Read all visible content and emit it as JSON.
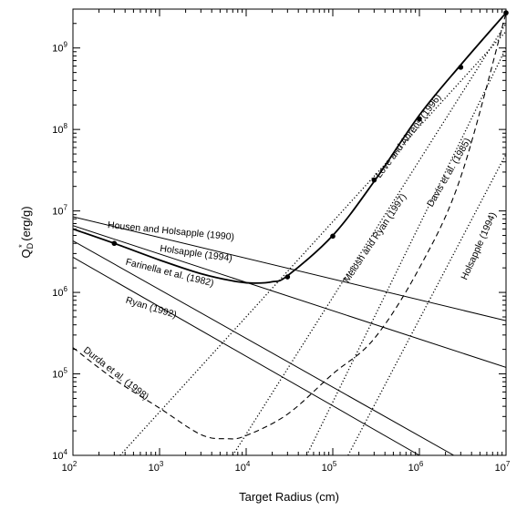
{
  "chart_data": {
    "type": "line",
    "xlabel": "Target Radius (cm)",
    "ylabel_main": "Q",
    "ylabel_sup": "*",
    "ylabel_sub": "D",
    "ylabel_unit": " (erg/g)",
    "x_scale": "log",
    "y_scale": "log",
    "xlim": [
      100,
      10000000
    ],
    "ylim": [
      10000,
      3000000000
    ],
    "x_ticks": [
      {
        "value": 100,
        "base": "10",
        "exp": "2"
      },
      {
        "value": 1000,
        "base": "10",
        "exp": "3"
      },
      {
        "value": 10000,
        "base": "10",
        "exp": "4"
      },
      {
        "value": 100000,
        "base": "10",
        "exp": "5"
      },
      {
        "value": 1000000,
        "base": "10",
        "exp": "6"
      },
      {
        "value": 10000000,
        "base": "10",
        "exp": "7"
      }
    ],
    "y_ticks": [
      {
        "value": 10000,
        "base": "10",
        "exp": "4"
      },
      {
        "value": 100000,
        "base": "10",
        "exp": "5"
      },
      {
        "value": 1000000,
        "base": "10",
        "exp": "6"
      },
      {
        "value": 10000000,
        "base": "10",
        "exp": "7"
      },
      {
        "value": 100000000,
        "base": "10",
        "exp": "8"
      },
      {
        "value": 1000000000,
        "base": "10",
        "exp": "9"
      }
    ],
    "grid": false,
    "legend": "none",
    "series": [
      {
        "name": "Housen and Holsapple (1990)",
        "style": "solid",
        "x": [
          100,
          10000000
        ],
        "y": [
          8500000,
          450000
        ]
      },
      {
        "name": "Holsapple (1994)",
        "style": "solid",
        "x": [
          100,
          10000000
        ],
        "y": [
          6600000,
          120000
        ]
      },
      {
        "name": "Farinella et al. (1982)",
        "style": "solid",
        "x": [
          100,
          2500000
        ],
        "y": [
          4300000,
          10000
        ]
      },
      {
        "name": "Ryan (1992)",
        "style": "solid",
        "x": [
          100,
          1000000
        ],
        "y": [
          2700000,
          10000
        ]
      },
      {
        "name": "Durda et al. (1998)",
        "style": "dashed",
        "x": [
          100,
          300,
          1000,
          3000,
          6000,
          10000,
          30000,
          100000,
          300000,
          1000000,
          3000000,
          10000000
        ],
        "y": [
          210000,
          86000,
          38000,
          18000,
          16000,
          17500,
          32000,
          100000,
          270000,
          2000000,
          26000000,
          2700000000
        ]
      },
      {
        "name": "Melosh and Ryan (1997)",
        "style": "dotted",
        "x": [
          350,
          10000000
        ],
        "y": [
          10000,
          1600000000
        ]
      },
      {
        "name": "Love and Ahrens (1996)",
        "style": "dotted",
        "x": [
          7000,
          10000000
        ],
        "y": [
          10000,
          2000000000
        ]
      },
      {
        "name": "Davis et al. (1985)",
        "style": "dotted",
        "x": [
          50000,
          10000000
        ],
        "y": [
          10000,
          1000000000
        ]
      },
      {
        "name": "Holsapple (1994)",
        "style": "dotted",
        "x": [
          150000,
          10000000
        ],
        "y": [
          10000,
          50000000
        ]
      },
      {
        "name": "",
        "style": "solid-thick",
        "x": [
          100,
          300,
          1000,
          3000,
          8000,
          13000,
          20000,
          30000,
          100000,
          300000,
          1000000,
          3000000,
          10000000
        ],
        "y": [
          6000000,
          4000000,
          2500000,
          1700000,
          1350000,
          1300000,
          1350000,
          1600000,
          5000000,
          23000000,
          150000000,
          620000000,
          2700000000
        ]
      }
    ],
    "points": [
      {
        "x": 300,
        "y": 4000000
      },
      {
        "x": 30000,
        "y": 1550000
      },
      {
        "x": 100000,
        "y": 4900000
      },
      {
        "x": 300000,
        "y": 24000000
      },
      {
        "x": 1000000,
        "y": 135000000
      },
      {
        "x": 3000000,
        "y": 580000000
      },
      {
        "x": 10000000,
        "y": 2700000000
      }
    ],
    "curve_labels": [
      {
        "text": "Housen and Holsapple (1990)",
        "x": 250,
        "y": 6200000,
        "angle": 5.5
      },
      {
        "text": "Holsapple (1994)",
        "x": 1000,
        "y": 3200000,
        "angle": 8
      },
      {
        "text": "Farinella et al. (1982)",
        "x": 400,
        "y": 2200000,
        "angle": 14
      },
      {
        "text": "Ryan (1992)",
        "x": 400,
        "y": 750000,
        "angle": 17
      },
      {
        "text": "Durda et al. (1998)",
        "x": 130,
        "y": 190000,
        "angle": 38
      },
      {
        "text": "Melosh and Ryan (1997)",
        "x": 150000,
        "y": 1300000,
        "angle": -56
      },
      {
        "text": "Love and Ahrens (1996)",
        "x": 350000,
        "y": 25000000,
        "angle": -53
      },
      {
        "text": "Davis et al. (1985)",
        "x": 1400000,
        "y": 11000000,
        "angle": -60
      },
      {
        "text": "Holsapple (1994)",
        "x": 3500000,
        "y": 1400000,
        "angle": -66
      }
    ]
  }
}
